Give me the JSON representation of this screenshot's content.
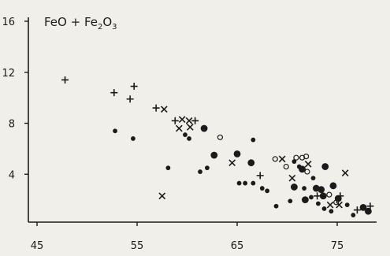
{
  "chart_data": {
    "type": "scatter",
    "title_parts": {
      "a": "FeO + Fe",
      "sub1": "2",
      "b": "O",
      "sub2": "3"
    },
    "xlabel": "",
    "ylabel": "",
    "xlim": [
      45,
      80
    ],
    "ylim": [
      0,
      16
    ],
    "x_ticks": [
      45,
      55,
      65,
      75
    ],
    "x_tick_labels": [
      "45",
      "55",
      "65",
      "75"
    ],
    "y_ticks": [
      4,
      8,
      12,
      16
    ],
    "y_tick_labels": [
      "4",
      "8",
      "12",
      "16"
    ],
    "grid": false,
    "legend": "none",
    "series": [
      {
        "marker": "plus",
        "points": [
          [
            47.8,
            11.4
          ],
          [
            52.7,
            10.4
          ],
          [
            54.3,
            9.9
          ],
          [
            54.7,
            10.9
          ],
          [
            56.9,
            9.2
          ],
          [
            58.8,
            8.2
          ],
          [
            60.8,
            8.2
          ],
          [
            67.3,
            3.9
          ],
          [
            75.3,
            2.3
          ],
          [
            73.0,
            2.3
          ],
          [
            77.0,
            1.2
          ],
          [
            78.3,
            1.5
          ]
        ]
      },
      {
        "marker": "cross",
        "points": [
          [
            57.7,
            9.1
          ],
          [
            59.2,
            7.6
          ],
          [
            59.5,
            8.3
          ],
          [
            60.2,
            8.2
          ],
          [
            60.3,
            7.7
          ],
          [
            57.5,
            2.3
          ],
          [
            64.5,
            4.9
          ],
          [
            69.5,
            5.2
          ],
          [
            70.5,
            3.7
          ],
          [
            72.1,
            4.8
          ],
          [
            75.8,
            4.1
          ],
          [
            74.3,
            1.6
          ],
          [
            75.2,
            1.6
          ]
        ]
      },
      {
        "marker": "dot",
        "points": [
          [
            52.8,
            7.4
          ],
          [
            54.6,
            6.8
          ],
          [
            58.1,
            4.5
          ],
          [
            59.8,
            7.1
          ],
          [
            60.2,
            6.8
          ],
          [
            61.3,
            4.2
          ],
          [
            62.0,
            4.5
          ],
          [
            66.6,
            6.7
          ],
          [
            65.2,
            3.3
          ],
          [
            65.8,
            3.3
          ],
          [
            66.6,
            3.3
          ],
          [
            67.5,
            2.9
          ],
          [
            68.0,
            2.7
          ],
          [
            70.7,
            5.0
          ],
          [
            71.2,
            4.6
          ],
          [
            71.7,
            2.9
          ],
          [
            72.4,
            2.2
          ],
          [
            73.1,
            1.7
          ],
          [
            73.7,
            1.3
          ],
          [
            74.4,
            1.1
          ],
          [
            72.6,
            3.7
          ],
          [
            76.6,
            0.8
          ],
          [
            68.9,
            1.5
          ],
          [
            70.3,
            1.9
          ],
          [
            76.0,
            1.6
          ]
        ]
      },
      {
        "marker": "bigdot",
        "points": [
          [
            61.7,
            7.6
          ],
          [
            62.7,
            5.5
          ],
          [
            65.0,
            5.6
          ],
          [
            66.4,
            4.9
          ],
          [
            70.7,
            3.0
          ],
          [
            71.5,
            4.4
          ],
          [
            71.8,
            2.0
          ],
          [
            73.4,
            2.8
          ],
          [
            73.8,
            4.6
          ],
          [
            74.6,
            3.1
          ],
          [
            75.1,
            2.1
          ],
          [
            77.6,
            1.4
          ],
          [
            78.1,
            1.1
          ],
          [
            73.6,
            2.3
          ],
          [
            72.9,
            2.9
          ]
        ]
      },
      {
        "marker": "circle",
        "points": [
          [
            63.3,
            6.9
          ],
          [
            68.8,
            5.2
          ],
          [
            69.9,
            4.6
          ],
          [
            70.9,
            5.3
          ],
          [
            71.5,
            5.3
          ],
          [
            71.9,
            5.4
          ],
          [
            72.0,
            4.2
          ],
          [
            74.2,
            2.4
          ],
          [
            74.9,
            1.8
          ]
        ]
      }
    ]
  }
}
